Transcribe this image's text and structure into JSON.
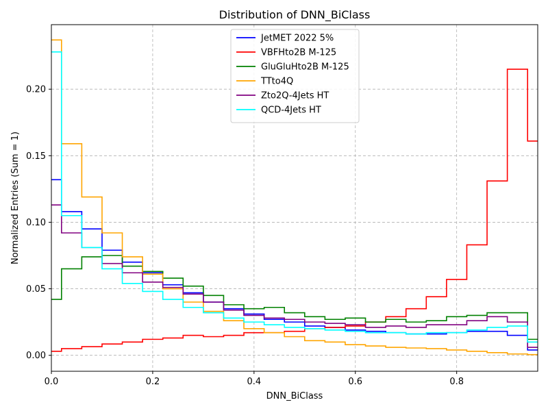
{
  "chart_data": {
    "type": "step",
    "title": "Distribution of DNN_BiClass",
    "xlabel": "DNN_BiClass",
    "ylabel": "Normalized Entries (Sum = 1)",
    "xlim": [
      0.0,
      0.96
    ],
    "ylim": [
      -0.012,
      0.2485
    ],
    "grid": true,
    "legend_position": "top-center",
    "xticks": [
      0.0,
      0.2,
      0.4,
      0.6,
      0.8
    ],
    "xtick_labels": [
      "0.0",
      "0.2",
      "0.4",
      "0.6",
      "0.8"
    ],
    "yticks": [
      0.0,
      0.05,
      0.1,
      0.15,
      0.2
    ],
    "ytick_labels": [
      "0.00",
      "0.05",
      "0.10",
      "0.15",
      "0.20"
    ],
    "bin_edges": [
      0.0,
      0.02,
      0.06,
      0.1,
      0.14,
      0.18,
      0.22,
      0.26,
      0.3,
      0.34,
      0.38,
      0.42,
      0.46,
      0.5,
      0.54,
      0.58,
      0.62,
      0.66,
      0.7,
      0.74,
      0.78,
      0.82,
      0.86,
      0.9,
      0.94,
      0.96
    ],
    "series": [
      {
        "name": "JetMET 2022 5%",
        "color": "#0000ff",
        "values": [
          0.132,
          0.108,
          0.095,
          0.079,
          0.07,
          0.062,
          0.053,
          0.047,
          0.04,
          0.035,
          0.031,
          0.027,
          0.025,
          0.022,
          0.021,
          0.019,
          0.018,
          0.017,
          0.016,
          0.016,
          0.017,
          0.018,
          0.018,
          0.015,
          0.004
        ]
      },
      {
        "name": "VBFHto2B M-125",
        "color": "#ff0000",
        "values": [
          0.003,
          0.005,
          0.0065,
          0.0085,
          0.01,
          0.012,
          0.013,
          0.015,
          0.014,
          0.015,
          0.017,
          0.017,
          0.018,
          0.02,
          0.021,
          0.022,
          0.025,
          0.029,
          0.035,
          0.044,
          0.057,
          0.083,
          0.131,
          0.215,
          0.161
        ]
      },
      {
        "name": "GluGluHto2B M-125",
        "color": "#008000",
        "values": [
          0.042,
          0.065,
          0.074,
          0.075,
          0.067,
          0.063,
          0.058,
          0.052,
          0.045,
          0.038,
          0.035,
          0.036,
          0.032,
          0.029,
          0.027,
          0.028,
          0.025,
          0.027,
          0.025,
          0.026,
          0.029,
          0.03,
          0.032,
          0.032,
          0.012
        ]
      },
      {
        "name": "TTto4Q",
        "color": "#ffa500",
        "values": [
          0.237,
          0.159,
          0.119,
          0.092,
          0.074,
          0.061,
          0.05,
          0.04,
          0.033,
          0.026,
          0.02,
          0.017,
          0.014,
          0.011,
          0.01,
          0.008,
          0.007,
          0.006,
          0.0055,
          0.005,
          0.004,
          0.003,
          0.002,
          0.001,
          0.0005
        ]
      },
      {
        "name": "Zto2Q-4Jets HT",
        "color": "#800080",
        "values": [
          0.113,
          0.092,
          0.081,
          0.069,
          0.062,
          0.055,
          0.051,
          0.046,
          0.04,
          0.034,
          0.03,
          0.028,
          0.027,
          0.025,
          0.024,
          0.023,
          0.021,
          0.022,
          0.021,
          0.023,
          0.023,
          0.026,
          0.029,
          0.025,
          0.006
        ]
      },
      {
        "name": "QCD-4Jets HT",
        "color": "#00ffff",
        "values": [
          0.228,
          0.105,
          0.081,
          0.065,
          0.054,
          0.048,
          0.042,
          0.036,
          0.032,
          0.028,
          0.025,
          0.023,
          0.021,
          0.02,
          0.019,
          0.018,
          0.017,
          0.017,
          0.016,
          0.017,
          0.017,
          0.019,
          0.021,
          0.022,
          0.01
        ]
      }
    ]
  }
}
